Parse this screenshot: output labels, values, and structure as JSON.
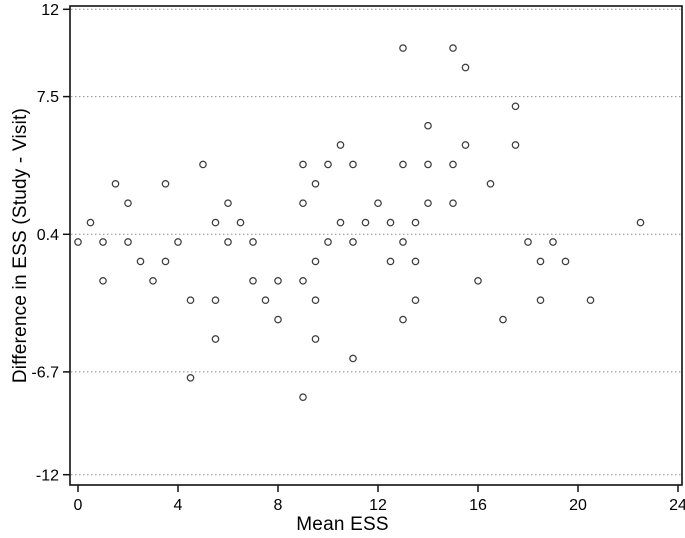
{
  "chart_data": {
    "type": "scatter",
    "title": "",
    "xlabel": "Mean ESS",
    "ylabel": "Difference in ESS (Study - Visit)",
    "legend": "none",
    "grid": "dotted horizontal line at every y tick",
    "marker": "open circle",
    "xlim": [
      -0.32,
      24.16
    ],
    "ylim": [
      -12.53,
      12.17
    ],
    "x_ticks": [
      {
        "value": 0,
        "label": "0"
      },
      {
        "value": 4,
        "label": "4"
      },
      {
        "value": 8,
        "label": "8"
      },
      {
        "value": 12,
        "label": "12"
      },
      {
        "value": 16,
        "label": "16"
      },
      {
        "value": 20,
        "label": "20"
      },
      {
        "value": 24,
        "label": "24"
      }
    ],
    "y_ticks": [
      {
        "value": 12,
        "label": "12"
      },
      {
        "value": 7.5,
        "label": "7.5"
      },
      {
        "value": 0.4,
        "label": "0.4"
      },
      {
        "value": -6.7,
        "label": "-6.7"
      },
      {
        "value": -12,
        "label": "-12"
      }
    ],
    "reference_lines": {
      "mean_difference": 0.4,
      "upper_limit": 7.5,
      "lower_limit": -6.7,
      "axis_bounds": [
        12,
        -12
      ]
    },
    "points": [
      [
        0.0,
        0
      ],
      [
        0.5,
        1
      ],
      [
        1.0,
        0
      ],
      [
        1.0,
        -2
      ],
      [
        1.5,
        3
      ],
      [
        2.0,
        2
      ],
      [
        2.0,
        0
      ],
      [
        2.5,
        -1
      ],
      [
        3.0,
        -2
      ],
      [
        3.5,
        3
      ],
      [
        3.5,
        -1
      ],
      [
        4.0,
        0
      ],
      [
        4.5,
        -3
      ],
      [
        4.5,
        -7
      ],
      [
        5.0,
        4
      ],
      [
        5.5,
        1
      ],
      [
        5.5,
        -3
      ],
      [
        5.5,
        -5
      ],
      [
        6.0,
        2
      ],
      [
        6.0,
        0
      ],
      [
        6.5,
        1
      ],
      [
        7.0,
        0
      ],
      [
        7.0,
        -2
      ],
      [
        7.5,
        -3
      ],
      [
        8.0,
        -2
      ],
      [
        8.0,
        -4
      ],
      [
        9.0,
        4
      ],
      [
        9.0,
        2
      ],
      [
        9.0,
        -2
      ],
      [
        9.0,
        -8
      ],
      [
        9.5,
        3
      ],
      [
        9.5,
        -1
      ],
      [
        9.5,
        -3
      ],
      [
        9.5,
        -5
      ],
      [
        10.0,
        4
      ],
      [
        10.0,
        0
      ],
      [
        10.5,
        5
      ],
      [
        10.5,
        1
      ],
      [
        11.0,
        4
      ],
      [
        11.0,
        0
      ],
      [
        11.0,
        -6
      ],
      [
        11.5,
        1
      ],
      [
        12.0,
        2
      ],
      [
        12.5,
        1
      ],
      [
        12.5,
        -1
      ],
      [
        13.0,
        10
      ],
      [
        13.0,
        4
      ],
      [
        13.0,
        0
      ],
      [
        13.0,
        -4
      ],
      [
        13.5,
        1
      ],
      [
        13.5,
        -1
      ],
      [
        13.5,
        -3
      ],
      [
        14.0,
        6
      ],
      [
        14.0,
        4
      ],
      [
        14.0,
        2
      ],
      [
        15.0,
        10
      ],
      [
        15.0,
        4
      ],
      [
        15.0,
        2
      ],
      [
        15.5,
        9
      ],
      [
        15.5,
        5
      ],
      [
        16.0,
        -2
      ],
      [
        16.5,
        3
      ],
      [
        17.0,
        -4
      ],
      [
        17.5,
        7
      ],
      [
        17.5,
        5
      ],
      [
        18.0,
        0
      ],
      [
        18.5,
        -1
      ],
      [
        18.5,
        -3
      ],
      [
        19.0,
        0
      ],
      [
        19.5,
        -1
      ],
      [
        20.5,
        -3
      ],
      [
        22.5,
        1
      ]
    ]
  },
  "styles": {
    "background": "#ffffff",
    "point_stroke": "#3d3d3d",
    "point_fill": "#ffffff",
    "grid_color": "#8f8f8f",
    "axis_color": "#111111",
    "label_color": "#000000"
  }
}
